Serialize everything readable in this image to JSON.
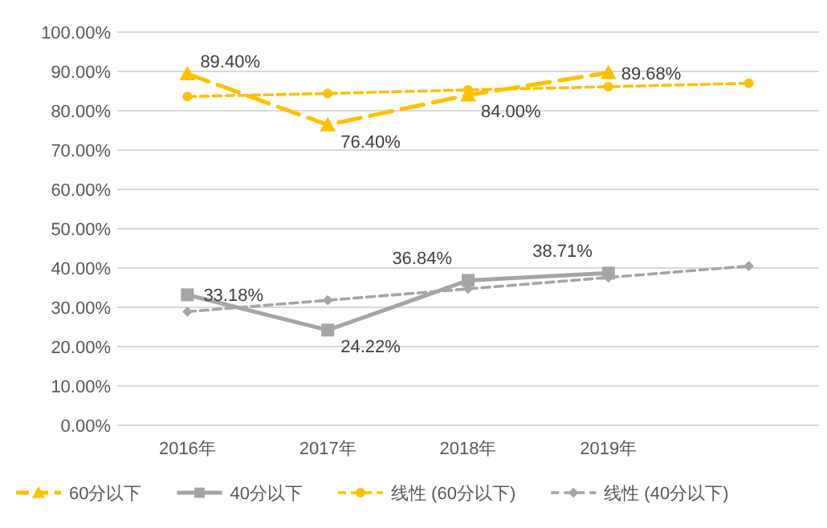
{
  "chart_data": {
    "type": "line",
    "categories": [
      "2016年",
      "2017年",
      "2018年",
      "2019年",
      null
    ],
    "ylim": [
      0,
      100
    ],
    "yticks": [
      {
        "value": 0,
        "label": "0.00%"
      },
      {
        "value": 10,
        "label": "10.00%"
      },
      {
        "value": 20,
        "label": "20.00%"
      },
      {
        "value": 30,
        "label": "30.00%"
      },
      {
        "value": 40,
        "label": "40.00%"
      },
      {
        "value": 50,
        "label": "50.00%"
      },
      {
        "value": 60,
        "label": "60.00%"
      },
      {
        "value": 70,
        "label": "70.00%"
      },
      {
        "value": 80,
        "label": "80.00%"
      },
      {
        "value": 90,
        "label": "90.00%"
      },
      {
        "value": 100,
        "label": "100.00%"
      }
    ],
    "grid": "y",
    "legend": "bottom",
    "series": [
      {
        "name": "60分以下",
        "color": "#ffc000",
        "values": [
          89.4,
          76.4,
          84.0,
          89.68,
          null
        ],
        "marker": "triangle",
        "line_style": "dashed",
        "value_labels": [
          "89.40%",
          "76.40%",
          "84.00%",
          "89.68%",
          null
        ]
      },
      {
        "name": "40分以下",
        "color": "#a5a5a5",
        "values": [
          33.18,
          24.22,
          36.84,
          38.71,
          null
        ],
        "marker": "square",
        "line_style": "solid",
        "value_labels": [
          "33.18%",
          "24.22%",
          "36.84%",
          "38.71%",
          null
        ]
      },
      {
        "name": "线性 (60分以下)",
        "color": "#ffc000",
        "values": [
          83.6,
          84.4,
          85.3,
          86.1,
          87.0
        ],
        "marker": "circle",
        "line_style": "dotted"
      },
      {
        "name": "线性 (40分以下)",
        "color": "#a5a5a5",
        "values": [
          28.9,
          31.8,
          34.7,
          37.6,
          40.5
        ],
        "marker": "diamond",
        "line_style": "dotted"
      }
    ]
  }
}
